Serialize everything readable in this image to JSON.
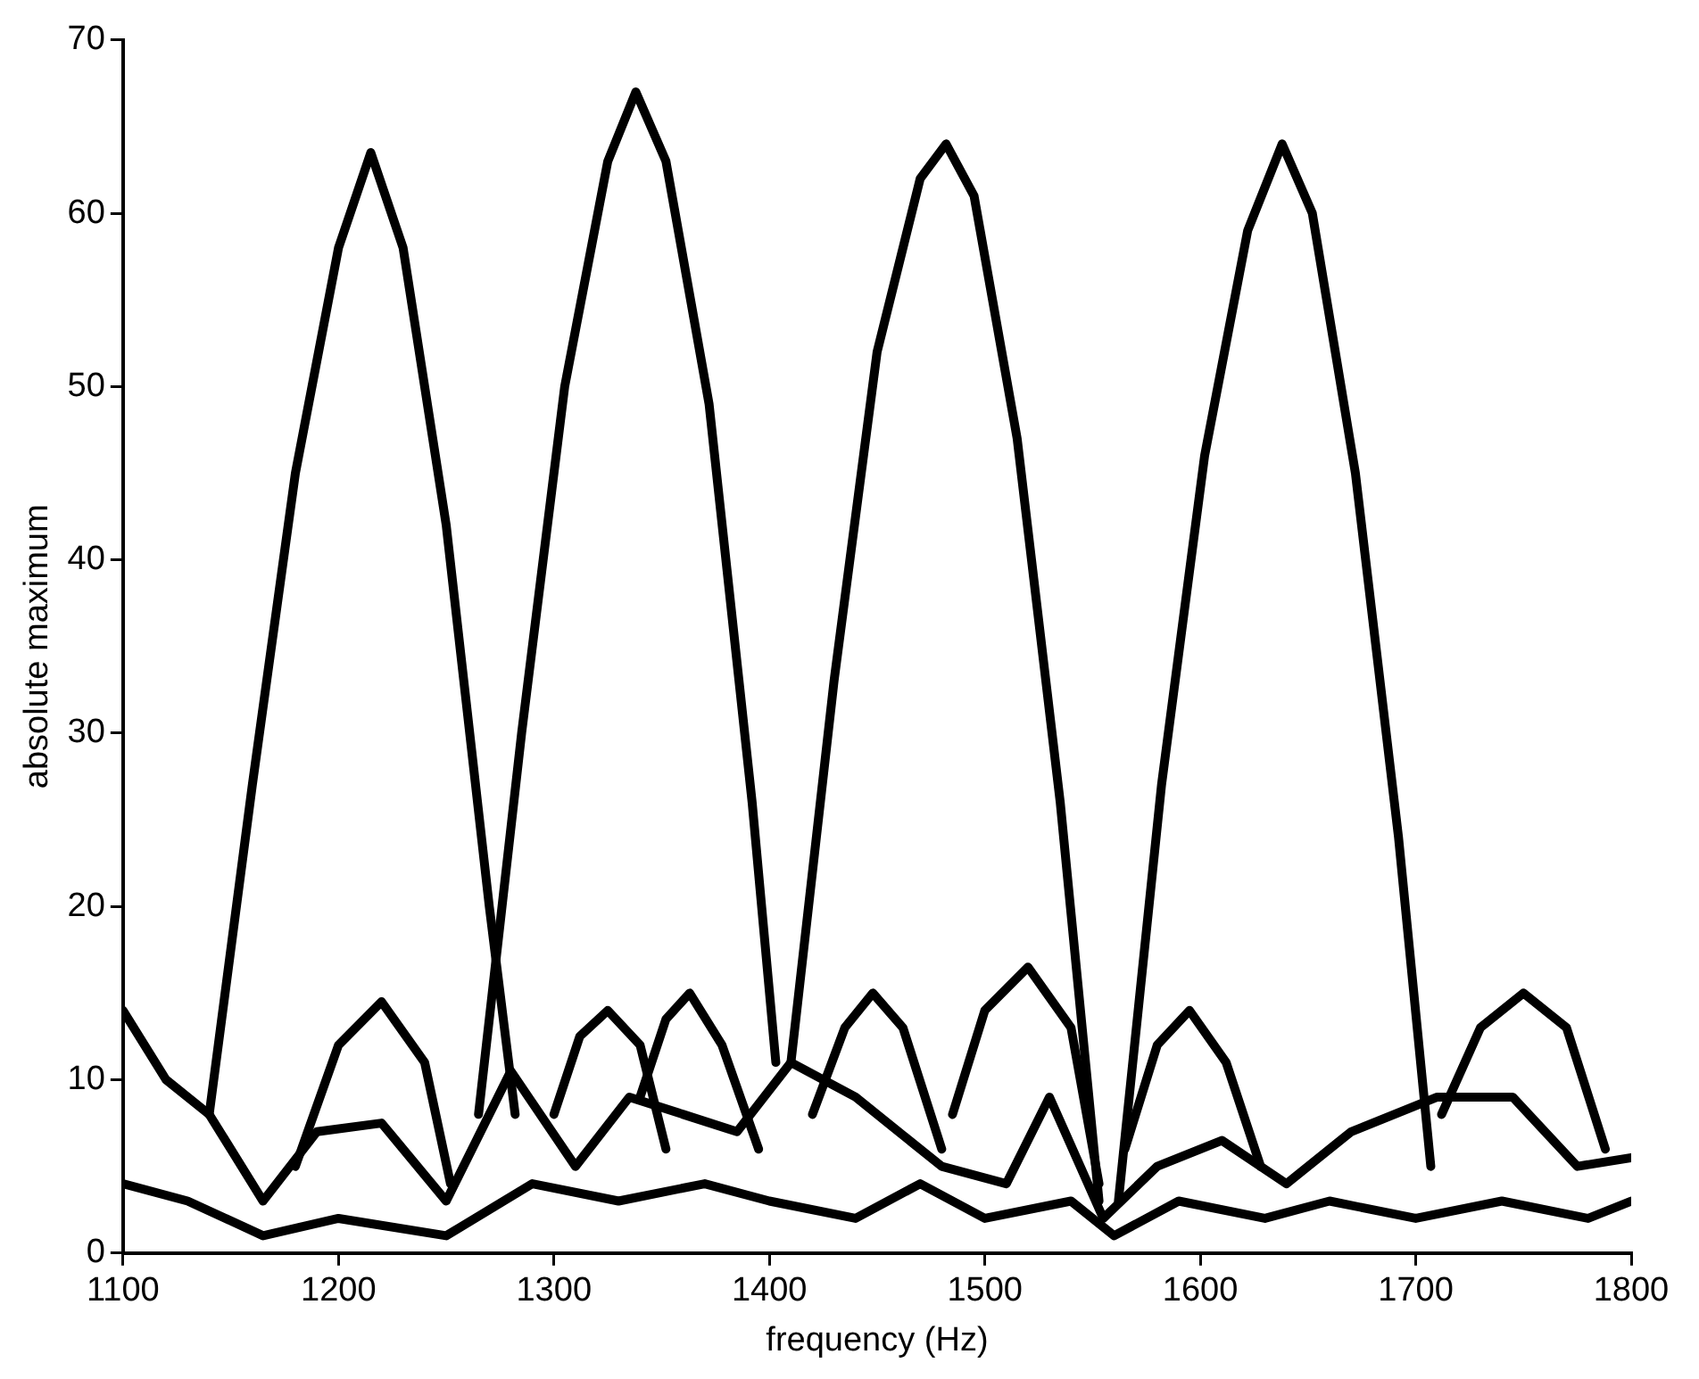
{
  "chart_data": {
    "type": "line",
    "xlabel": "frequency (Hz)",
    "ylabel": "absolute maximum",
    "xlim": [
      1100,
      1800
    ],
    "xticks": [
      1100,
      1200,
      1300,
      1400,
      1500,
      1600,
      1700,
      1800
    ],
    "ylim": [
      0,
      70
    ],
    "yticks": [
      0,
      10,
      20,
      30,
      40,
      50,
      60,
      70
    ],
    "grid": false,
    "legend": false,
    "marker": "none",
    "line_style": "solid",
    "series": [
      {
        "color": "#000000",
        "x": [
          1140,
          1160,
          1180,
          1200,
          1215,
          1230,
          1250,
          1270,
          1282
        ],
        "values": [
          8,
          27,
          45,
          58,
          63.5,
          58,
          42,
          20,
          8
        ]
      },
      {
        "color": "#000000",
        "x": [
          1265,
          1285,
          1305,
          1325,
          1338,
          1352,
          1372,
          1392,
          1403
        ],
        "values": [
          8,
          30,
          50,
          63,
          67,
          63,
          49,
          26,
          11
        ]
      },
      {
        "color": "#000000",
        "x": [
          1410,
          1430,
          1450,
          1470,
          1482,
          1495,
          1515,
          1535,
          1553
        ],
        "values": [
          11,
          33,
          52,
          62,
          64,
          61,
          47,
          26,
          3
        ]
      },
      {
        "color": "#000000",
        "x": [
          1562,
          1582,
          1602,
          1622,
          1638,
          1652,
          1672,
          1692,
          1707
        ],
        "values": [
          3,
          27,
          46,
          59,
          64,
          60,
          45,
          24,
          5
        ]
      },
      {
        "color": "#000000",
        "x": [
          1180,
          1200,
          1220,
          1240,
          1252
        ],
        "values": [
          5,
          12,
          14.5,
          11,
          4
        ]
      },
      {
        "color": "#000000",
        "x": [
          1300,
          1312,
          1325,
          1340,
          1352
        ],
        "values": [
          8,
          12.5,
          14,
          12,
          6
        ]
      },
      {
        "color": "#000000",
        "x": [
          1340,
          1352,
          1363,
          1378,
          1395
        ],
        "values": [
          9,
          13.5,
          15,
          12,
          6
        ]
      },
      {
        "color": "#000000",
        "x": [
          1420,
          1435,
          1448,
          1462,
          1480
        ],
        "values": [
          8,
          13,
          15,
          13,
          6
        ]
      },
      {
        "color": "#000000",
        "x": [
          1485,
          1500,
          1520,
          1540,
          1553
        ],
        "values": [
          8,
          14,
          16.5,
          13,
          4
        ]
      },
      {
        "color": "#000000",
        "x": [
          1565,
          1580,
          1595,
          1612,
          1628
        ],
        "values": [
          6,
          12,
          14,
          11,
          5
        ]
      },
      {
        "color": "#000000",
        "x": [
          1712,
          1730,
          1750,
          1770,
          1788
        ],
        "values": [
          8,
          13,
          15,
          13,
          6
        ]
      },
      {
        "color": "#000000",
        "x": [
          1100,
          1120,
          1140,
          1165,
          1190,
          1220,
          1250,
          1280,
          1310,
          1335,
          1360,
          1385,
          1410,
          1440,
          1480,
          1510,
          1530,
          1555,
          1580,
          1610,
          1640,
          1670,
          1710,
          1745,
          1775,
          1800
        ],
        "values": [
          14,
          10,
          8,
          3,
          7,
          7.5,
          3,
          10.5,
          5,
          9,
          8,
          7,
          11,
          9,
          5,
          4,
          9,
          2,
          5,
          6.5,
          4,
          7,
          9,
          9,
          5,
          5.5
        ]
      },
      {
        "color": "#000000",
        "x": [
          1100,
          1130,
          1165,
          1200,
          1250,
          1290,
          1330,
          1370,
          1400,
          1440,
          1470,
          1500,
          1540,
          1560,
          1590,
          1630,
          1660,
          1700,
          1740,
          1780,
          1800
        ],
        "values": [
          4,
          3,
          1,
          2,
          1,
          4,
          3,
          4,
          3,
          2,
          4,
          2,
          3,
          1,
          3,
          2,
          3,
          2,
          3,
          2,
          3
        ]
      }
    ]
  }
}
